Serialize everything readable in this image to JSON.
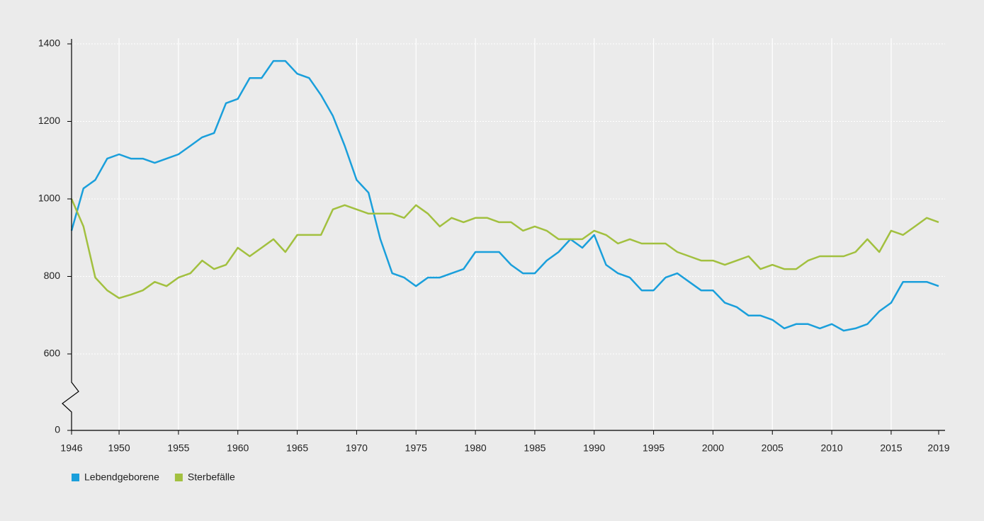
{
  "chart_data": {
    "type": "line",
    "x": [
      1946,
      1947,
      1948,
      1949,
      1950,
      1951,
      1952,
      1953,
      1954,
      1955,
      1956,
      1957,
      1958,
      1959,
      1960,
      1961,
      1962,
      1963,
      1964,
      1965,
      1966,
      1967,
      1968,
      1969,
      1970,
      1971,
      1972,
      1973,
      1974,
      1975,
      1976,
      1977,
      1978,
      1979,
      1980,
      1981,
      1982,
      1983,
      1984,
      1985,
      1986,
      1987,
      1988,
      1989,
      1990,
      1991,
      1992,
      1993,
      1994,
      1995,
      1996,
      1997,
      1998,
      1999,
      2000,
      2001,
      2002,
      2003,
      2004,
      2005,
      2006,
      2007,
      2008,
      2009,
      2010,
      2011,
      2012,
      2013,
      2014,
      2015,
      2016,
      2017,
      2018,
      2019
    ],
    "series": [
      {
        "name": "Lebendgeborene",
        "color": "#1a9fdb",
        "values": [
          918,
          1027,
          1049,
          1104,
          1115,
          1104,
          1104,
          1093,
          1104,
          1115,
          1137,
          1159,
          1170,
          1247,
          1258,
          1312,
          1312,
          1356,
          1356,
          1323,
          1312,
          1268,
          1214,
          1137,
          1049,
          1016,
          896,
          808,
          797,
          775,
          797,
          797,
          808,
          819,
          863,
          863,
          863,
          830,
          808,
          808,
          841,
          863,
          896,
          874,
          907,
          830,
          808,
          797,
          764,
          764,
          797,
          808,
          786,
          764,
          764,
          732,
          721,
          699,
          699,
          688,
          666,
          677,
          677,
          666,
          677,
          660,
          666,
          677,
          710,
          732,
          786,
          786,
          786,
          775
        ]
      },
      {
        "name": "Sterbefälle",
        "color": "#a2c03f",
        "values": [
          1000,
          929,
          797,
          764,
          744,
          753,
          764,
          786,
          775,
          797,
          808,
          841,
          819,
          830,
          874,
          852,
          874,
          896,
          863,
          907,
          907,
          907,
          973,
          984,
          973,
          962,
          962,
          962,
          951,
          984,
          962,
          929,
          951,
          940,
          951,
          951,
          940,
          940,
          918,
          929,
          918,
          896,
          896,
          896,
          918,
          907,
          885,
          896,
          885,
          885,
          885,
          863,
          852,
          841,
          841,
          830,
          841,
          852,
          819,
          830,
          819,
          819,
          841,
          852,
          852,
          852,
          863,
          896,
          863,
          918,
          907,
          929,
          951,
          940
        ]
      }
    ],
    "xlim": [
      1946,
      2019
    ],
    "xticks": [
      1946,
      1950,
      1955,
      1960,
      1965,
      1970,
      1975,
      1980,
      1985,
      1990,
      1995,
      2000,
      2005,
      2010,
      2015,
      2019
    ],
    "ylim": [
      0,
      1400
    ],
    "yticks": [
      0,
      600,
      800,
      1000,
      1200,
      1400
    ],
    "axis_break": true,
    "grid": true,
    "legend": "bottom-left"
  }
}
